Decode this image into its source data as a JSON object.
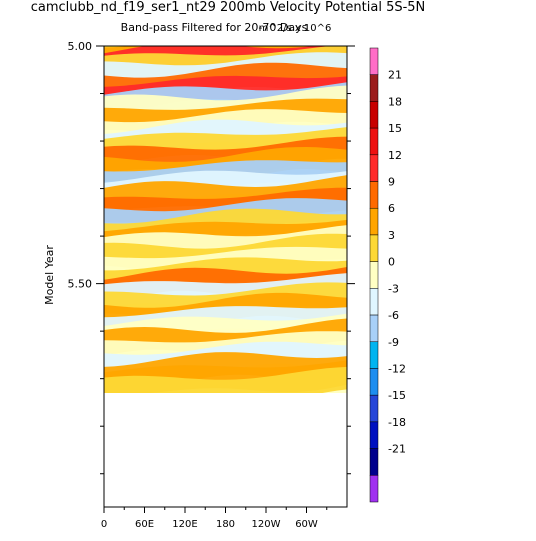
{
  "chart_data": {
    "type": "heatmap",
    "title": "camclubb_nd_f19_ser1_nt29 200mb Velocity Potential 5S-5N",
    "subtitle": "Band-pass Filtered for 20-70 Days",
    "units_label": "m^2/s x 10^6",
    "ylabel": "Model Year",
    "xlabel": "",
    "x_ticks": [
      "0",
      "60E",
      "120E",
      "180",
      "120W",
      "60W"
    ],
    "x_tick_lon": [
      0,
      60,
      120,
      180,
      240,
      300
    ],
    "xlim": [
      0,
      360
    ],
    "y_ticks": [
      "5.00",
      "5.50"
    ],
    "y_tick_values": [
      5.0,
      5.5
    ],
    "ylim": [
      5.0,
      5.97
    ],
    "data_end_year": 5.74,
    "colorbar": {
      "labels": [
        "21",
        "18",
        "15",
        "12",
        "9",
        "6",
        "3",
        "0",
        "-3",
        "-6",
        "-9",
        "-12",
        "-15",
        "-18",
        "-21"
      ],
      "levels": [
        21,
        18,
        15,
        12,
        9,
        6,
        3,
        0,
        -3,
        -6,
        -9,
        -12,
        -15,
        -18,
        -21
      ],
      "colors": [
        "#ff6ec7",
        "#9b1c1c",
        "#c80000",
        "#ee1010",
        "#ff2a2a",
        "#ff6a00",
        "#ffa500",
        "#fdd835",
        "#ffffc4",
        "#e0f6ff",
        "#a8d0f8",
        "#00b4f0",
        "#1e8ef0",
        "#2646d8",
        "#0010c0",
        "#00008c",
        "#a030f0"
      ]
    },
    "bands": [
      {
        "year": 5.005,
        "value": 2
      },
      {
        "year": 5.02,
        "value": 4.5
      },
      {
        "year": 5.035,
        "value": 9
      },
      {
        "year": 5.05,
        "value": 1
      },
      {
        "year": 5.065,
        "value": -5
      },
      {
        "year": 5.085,
        "value": 7
      },
      {
        "year": 5.105,
        "value": 10
      },
      {
        "year": 5.125,
        "value": -9
      },
      {
        "year": 5.14,
        "value": -2
      },
      {
        "year": 5.16,
        "value": 4
      },
      {
        "year": 5.18,
        "value": -3
      },
      {
        "year": 5.2,
        "value": -6
      },
      {
        "year": 5.22,
        "value": 2
      },
      {
        "year": 5.245,
        "value": 8
      },
      {
        "year": 5.265,
        "value": 3
      },
      {
        "year": 5.285,
        "value": -7
      },
      {
        "year": 5.305,
        "value": -4
      },
      {
        "year": 5.325,
        "value": 5
      },
      {
        "year": 5.35,
        "value": 6
      },
      {
        "year": 5.37,
        "value": -8
      },
      {
        "year": 5.39,
        "value": 2
      },
      {
        "year": 5.41,
        "value": 4
      },
      {
        "year": 5.43,
        "value": -2
      },
      {
        "year": 5.45,
        "value": 1
      },
      {
        "year": 5.47,
        "value": -3
      },
      {
        "year": 5.49,
        "value": 2
      },
      {
        "year": 5.51,
        "value": 6
      },
      {
        "year": 5.53,
        "value": -4
      },
      {
        "year": 5.55,
        "value": 1
      },
      {
        "year": 5.57,
        "value": 5
      },
      {
        "year": 5.59,
        "value": -5
      },
      {
        "year": 5.61,
        "value": -2
      },
      {
        "year": 5.63,
        "value": 4
      },
      {
        "year": 5.65,
        "value": -3
      },
      {
        "year": 5.67,
        "value": -6
      },
      {
        "year": 5.69,
        "value": 3
      },
      {
        "year": 5.71,
        "value": 5
      },
      {
        "year": 5.73,
        "value": 2
      }
    ]
  }
}
